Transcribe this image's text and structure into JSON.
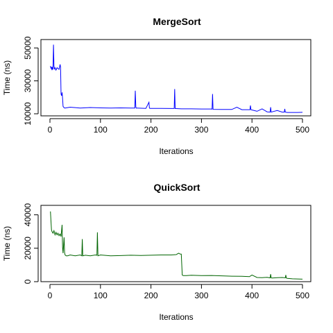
{
  "chart_data": [
    {
      "type": "line",
      "title": "MergeSort",
      "xlabel": "Iterations",
      "ylabel": "Time (ns)",
      "color": "#0000ff",
      "xlim": [
        0,
        500
      ],
      "ylim": [
        10000,
        53000
      ],
      "x_ticks": [
        "0",
        "100",
        "200",
        "300",
        "400",
        "500"
      ],
      "y_ticks": [
        "10000",
        "30000",
        "50000"
      ],
      "series": [
        {
          "x": [
            1,
            2,
            3,
            4,
            5,
            6,
            7,
            8,
            9,
            10,
            12,
            14,
            16,
            18,
            20,
            21,
            22,
            23,
            24,
            25,
            26,
            27,
            28,
            29,
            30,
            40,
            60,
            80,
            100,
            120,
            140,
            160,
            168,
            169,
            170,
            171,
            172,
            190,
            196,
            197,
            198,
            220,
            240,
            246,
            247,
            248,
            260,
            280,
            300,
            320,
            321,
            322,
            323,
            324,
            340,
            360,
            370,
            380,
            390,
            396,
            397,
            398,
            400,
            410,
            420,
            430,
            436,
            437,
            438,
            440,
            450,
            460,
            464,
            465,
            466,
            470,
            480,
            490,
            500
          ],
          "y": [
            39000,
            37500,
            38500,
            36500,
            38000,
            37000,
            52000,
            39000,
            37000,
            38000,
            36500,
            38000,
            37500,
            37000,
            40000,
            38500,
            22000,
            21000,
            23000,
            19500,
            14500,
            14000,
            13800,
            13500,
            13500,
            14000,
            13500,
            13800,
            13600,
            13500,
            13600,
            13500,
            13500,
            24000,
            14000,
            13400,
            13500,
            13300,
            17000,
            13500,
            13300,
            13300,
            13200,
            13200,
            25000,
            13200,
            13000,
            13000,
            12900,
            12900,
            12800,
            22000,
            12800,
            12700,
            12600,
            12600,
            14000,
            12500,
            12500,
            12500,
            15000,
            12500,
            12300,
            11500,
            13000,
            11200,
            11000,
            14000,
            11000,
            11200,
            12000,
            11000,
            11000,
            13000,
            11000,
            10800,
            10800,
            10800,
            10900
          ]
        }
      ]
    },
    {
      "type": "line",
      "title": "QuickSort",
      "xlabel": "Iterations",
      "ylabel": "Time (ns)",
      "color": "#006400",
      "xlim": [
        0,
        500
      ],
      "ylim": [
        0,
        44000
      ],
      "x_ticks": [
        "0",
        "100",
        "200",
        "300",
        "400",
        "500"
      ],
      "y_ticks": [
        "0",
        "20000",
        "40000"
      ],
      "series": [
        {
          "x": [
            1,
            2,
            3,
            4,
            6,
            8,
            10,
            12,
            14,
            16,
            18,
            20,
            22,
            24,
            25,
            26,
            28,
            29,
            30,
            32,
            35,
            40,
            50,
            60,
            63,
            64,
            65,
            70,
            80,
            90,
            93,
            94,
            95,
            100,
            120,
            140,
            160,
            180,
            200,
            220,
            240,
            250,
            255,
            258,
            260,
            262,
            264,
            270,
            280,
            300,
            320,
            340,
            360,
            380,
            395,
            400,
            410,
            420,
            430,
            436,
            437,
            438,
            440,
            450,
            460,
            466,
            467,
            468,
            470,
            480,
            490,
            500
          ],
          "y": [
            42000,
            36000,
            31000,
            30000,
            29000,
            30500,
            28000,
            29500,
            28000,
            29000,
            27500,
            28500,
            27000,
            34000,
            20500,
            17000,
            26500,
            17500,
            16000,
            15500,
            15500,
            16000,
            15500,
            16000,
            15500,
            25500,
            15500,
            15800,
            15500,
            16000,
            15800,
            29500,
            15500,
            16000,
            15500,
            15600,
            15800,
            15700,
            15800,
            16000,
            16000,
            16200,
            17000,
            16500,
            16500,
            4000,
            3600,
            3600,
            3800,
            3600,
            3700,
            3500,
            3300,
            3200,
            3000,
            4000,
            2500,
            2400,
            2600,
            2300,
            4500,
            2300,
            2200,
            2400,
            2500,
            2300,
            4000,
            2200,
            2000,
            1700,
            1600,
            1500
          ]
        }
      ]
    }
  ]
}
